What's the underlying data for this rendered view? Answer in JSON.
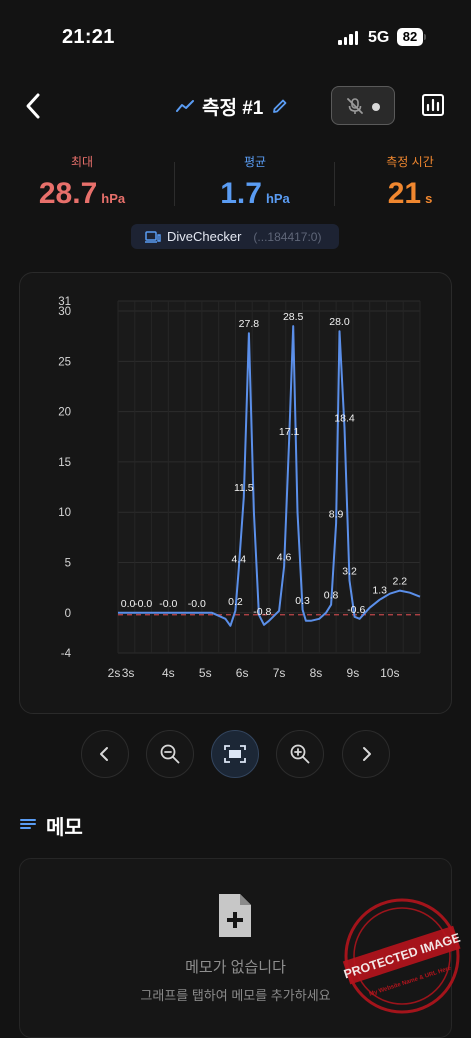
{
  "status_bar": {
    "time": "21:21",
    "network": "5G",
    "battery": "82"
  },
  "nav": {
    "back_icon": "chevron-left-icon",
    "title": "측정 #1",
    "title_icon": "trend-line-icon",
    "edit_icon": "pencil-icon",
    "sensor_icon": "mic-off-icon",
    "chart_icon": "bar-chart-icon"
  },
  "stats": {
    "max": {
      "label": "최대",
      "value": "28.7",
      "unit": "hPa",
      "color": "#e8706b"
    },
    "avg": {
      "label": "평균",
      "value": "1.7",
      "unit": "hPa",
      "color": "#5a9cf3"
    },
    "time": {
      "label": "측정 시간",
      "value": "21",
      "unit": "s",
      "color": "#f0872f"
    }
  },
  "device": {
    "name": "DiveChecker",
    "id": "(...184417:0)",
    "icon": "device-icon"
  },
  "chart_data": {
    "type": "line",
    "xlabel": "",
    "ylabel": "",
    "ylim": [
      -4,
      31
    ],
    "xlim": [
      2,
      11
    ],
    "y_ticks": [
      "31",
      "30",
      "25",
      "20",
      "15",
      "10",
      "5",
      "0",
      "-4"
    ],
    "y_tick_values": [
      31,
      30,
      25,
      20,
      15,
      10,
      5,
      0,
      -4
    ],
    "x_ticks": [
      "2s",
      "3s",
      "4s",
      "5s",
      "6s",
      "7s",
      "8s",
      "9s",
      "10s"
    ],
    "x_tick_values": [
      2,
      2.3,
      3.5,
      4.6,
      5.7,
      6.8,
      7.9,
      9.0,
      10.1
    ],
    "reference_line": {
      "y": -0.2,
      "color": "#c0474a",
      "style": "dashed"
    },
    "line_color": "#5b8fe9",
    "grid": true,
    "series": [
      {
        "values": [
          [
            2,
            0.0
          ],
          [
            2.6,
            0.0
          ],
          [
            3.2,
            0.0
          ],
          [
            4.0,
            0.0
          ],
          [
            4.8,
            0.0
          ],
          [
            5.0,
            -0.3
          ],
          [
            5.2,
            -0.6
          ],
          [
            5.35,
            -1.3
          ],
          [
            5.5,
            0.2
          ],
          [
            5.6,
            4.4
          ],
          [
            5.75,
            11.5
          ],
          [
            5.9,
            27.8
          ],
          [
            6.05,
            10.0
          ],
          [
            6.2,
            -0.2
          ],
          [
            6.35,
            -1.2
          ],
          [
            6.5,
            -0.8
          ],
          [
            6.8,
            0.2
          ],
          [
            6.95,
            4.6
          ],
          [
            7.1,
            17.1
          ],
          [
            7.22,
            28.5
          ],
          [
            7.35,
            10.0
          ],
          [
            7.5,
            0.3
          ],
          [
            7.6,
            -0.8
          ],
          [
            7.75,
            -0.8
          ],
          [
            8.0,
            -0.6
          ],
          [
            8.2,
            0.0
          ],
          [
            8.35,
            0.8
          ],
          [
            8.5,
            8.9
          ],
          [
            8.6,
            28.0
          ],
          [
            8.75,
            18.4
          ],
          [
            8.9,
            3.2
          ],
          [
            9.05,
            -0.4
          ],
          [
            9.2,
            -0.6
          ],
          [
            9.5,
            0.5
          ],
          [
            9.8,
            1.3
          ],
          [
            10.1,
            1.9
          ],
          [
            10.4,
            2.2
          ],
          [
            10.7,
            2.0
          ],
          [
            11.0,
            1.6
          ]
        ]
      }
    ],
    "data_labels": [
      {
        "x": 2.3,
        "y": 0.0,
        "text": "0.0"
      },
      {
        "x": 2.75,
        "y": 0.0,
        "text": "-0.0"
      },
      {
        "x": 3.5,
        "y": 0.0,
        "text": "-0.0"
      },
      {
        "x": 4.35,
        "y": 0.0,
        "text": "-0.0"
      },
      {
        "x": 5.5,
        "y": 0.2,
        "text": "0.2"
      },
      {
        "x": 5.6,
        "y": 4.4,
        "text": "4.4"
      },
      {
        "x": 5.75,
        "y": 11.5,
        "text": "11.5"
      },
      {
        "x": 5.9,
        "y": 27.8,
        "text": "27.8"
      },
      {
        "x": 6.3,
        "y": -0.8,
        "text": "-0.8"
      },
      {
        "x": 6.95,
        "y": 4.6,
        "text": "4.6"
      },
      {
        "x": 7.1,
        "y": 17.1,
        "text": "17.1"
      },
      {
        "x": 7.22,
        "y": 28.5,
        "text": "28.5"
      },
      {
        "x": 7.5,
        "y": 0.3,
        "text": "0.3"
      },
      {
        "x": 8.35,
        "y": 0.8,
        "text": "0.8"
      },
      {
        "x": 8.5,
        "y": 8.9,
        "text": "8.9"
      },
      {
        "x": 8.6,
        "y": 28.0,
        "text": "28.0"
      },
      {
        "x": 8.75,
        "y": 18.4,
        "text": "18.4"
      },
      {
        "x": 8.9,
        "y": 3.2,
        "text": "3.2"
      },
      {
        "x": 9.1,
        "y": -0.6,
        "text": "-0.6"
      },
      {
        "x": 9.8,
        "y": 1.3,
        "text": "1.3"
      },
      {
        "x": 10.4,
        "y": 2.2,
        "text": "2.2"
      }
    ]
  },
  "controls": {
    "prev": "chevron-left-icon",
    "zoom_out": "zoom-out-icon",
    "fit": "fit-screen-icon",
    "zoom_in": "zoom-in-icon",
    "next": "chevron-right-icon"
  },
  "memo": {
    "title": "메모",
    "title_icon": "list-icon",
    "empty_icon": "add-file-icon",
    "empty_text": "메모가 없습니다",
    "hint": "그래프를 탭하여 메모를 추가하세요"
  },
  "watermark": {
    "main": "PROTECTED IMAGE",
    "sub": "My Website Name & URL Here",
    "color": "#b3141c"
  }
}
